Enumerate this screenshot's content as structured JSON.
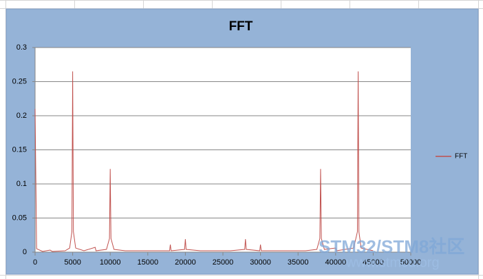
{
  "chart_data": {
    "type": "line",
    "title": "FFT",
    "x": [
      0,
      200,
      1000,
      2000,
      2300,
      4000,
      4600,
      4900,
      5000,
      5100,
      5400,
      6500,
      8000,
      8100,
      9500,
      9900,
      10000,
      10100,
      10500,
      12000,
      17900,
      18000,
      18100,
      19900,
      20000,
      20100,
      22000,
      26000,
      27900,
      28000,
      28100,
      29900,
      30000,
      30100,
      36000,
      37500,
      37900,
      38000,
      38100,
      38500,
      40000,
      40100,
      42400,
      42900,
      43000,
      43100,
      43400,
      45000
    ],
    "series": [
      {
        "name": "FFT",
        "color": "#c0504d",
        "values": [
          0.21,
          0.005,
          0.001,
          0.003,
          0.001,
          0.002,
          0.006,
          0.03,
          0.265,
          0.03,
          0.006,
          0.002,
          0.007,
          0.002,
          0.004,
          0.02,
          0.122,
          0.02,
          0.004,
          0.002,
          0.002,
          0.011,
          0.002,
          0.004,
          0.019,
          0.004,
          0.002,
          0.002,
          0.004,
          0.019,
          0.004,
          0.002,
          0.011,
          0.002,
          0.002,
          0.004,
          0.02,
          0.122,
          0.02,
          0.004,
          0.006,
          0.002,
          0.006,
          0.03,
          0.265,
          0.03,
          0.006,
          0.002
        ]
      }
    ],
    "xlim": [
      0,
      50000
    ],
    "xticks": [
      0,
      5000,
      10000,
      15000,
      20000,
      25000,
      30000,
      35000,
      40000,
      45000,
      50000
    ],
    "ylim": [
      0,
      0.3
    ],
    "yticks": [
      0,
      0.05,
      0.1,
      0.15,
      0.2,
      0.25,
      0.3
    ],
    "grid": true,
    "legend": "right",
    "watermark": [
      "STM32/STM8社区",
      "www.stmcu.org"
    ]
  }
}
